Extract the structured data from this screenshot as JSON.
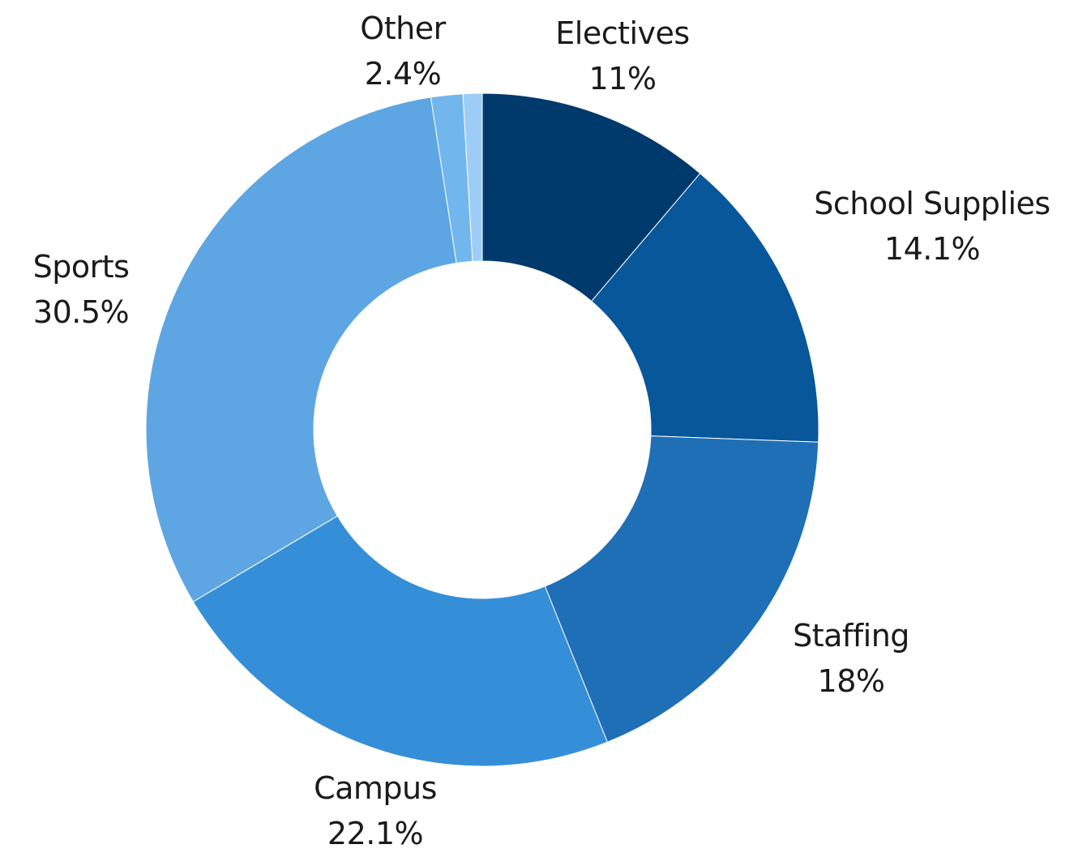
{
  "chart_data": {
    "type": "pie",
    "donut": true,
    "slices": [
      {
        "label": "Electives",
        "value": 11,
        "display": "11%",
        "color": "#003a6d"
      },
      {
        "label": "School Supplies",
        "value": 14.1,
        "display": "14.1%",
        "color": "#08579a"
      },
      {
        "label": "Staffing",
        "value": 18,
        "display": "18%",
        "color": "#1f6fb7"
      },
      {
        "label": "Campus",
        "value": 22.1,
        "display": "22.1%",
        "color": "#358fd8"
      },
      {
        "label": "Sports",
        "value": 30.5,
        "display": "30.5%",
        "color": "#5ea6e3"
      },
      {
        "label": "",
        "value": 1.5,
        "display": "",
        "color": "#72b6ee"
      },
      {
        "label": "",
        "value": 0.9,
        "display": "",
        "color": "#9dcdf6"
      }
    ],
    "other_label": {
      "name": "Other",
      "value": "2.4%"
    },
    "legend": false
  }
}
